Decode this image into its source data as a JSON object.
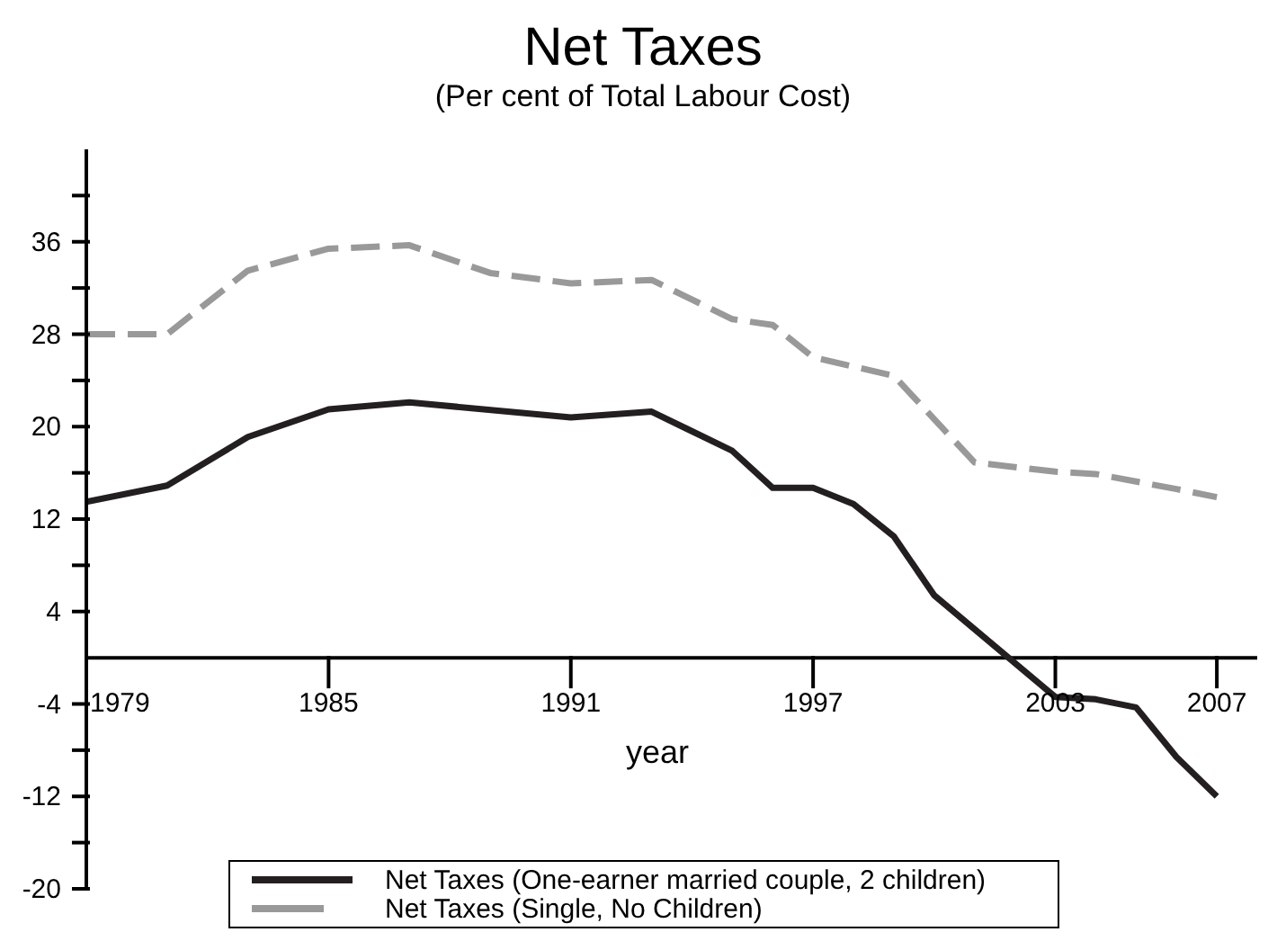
{
  "chart_data": {
    "type": "line",
    "title": "Net Taxes",
    "subtitle": "(Per cent of Total Labour Cost)",
    "xlabel": "year",
    "xlim": [
      1979,
      2008
    ],
    "xticks": [
      1979,
      1985,
      1991,
      1997,
      2003,
      2007
    ],
    "ylim": [
      -20,
      44
    ],
    "yticks": [
      {
        "value": 40,
        "label": null
      },
      36,
      {
        "value": 32,
        "label": null
      },
      28,
      {
        "value": 24,
        "label": null
      },
      20,
      {
        "value": 16,
        "label": null
      },
      12,
      {
        "value": 8,
        "label": null
      },
      4,
      -4,
      {
        "value": -8,
        "label": null
      },
      -12,
      {
        "value": -16,
        "label": null
      },
      -20
    ],
    "legend": "bottom",
    "marker": "none",
    "series": [
      {
        "name": "Net Taxes (One-earner married couple, 2 children)",
        "color": "#231f20",
        "line_style": "solid",
        "x": [
          1979,
          1981,
          1983,
          1985,
          1987,
          1991,
          1993,
          1995,
          1996,
          1997,
          1998,
          1999,
          2000,
          2003,
          2004,
          2005,
          2006,
          2007
        ],
        "values": [
          13.5,
          14.9,
          19.1,
          21.5,
          22.1,
          20.8,
          21.3,
          17.9,
          14.7,
          14.7,
          13.3,
          10.5,
          5.4,
          -3.4,
          -3.6,
          -4.3,
          -8.6,
          -12.0
        ]
      },
      {
        "name": "Net Taxes (Single, No Children)",
        "color": "#999999",
        "line_style": "dashed",
        "x": [
          1979,
          1981,
          1983,
          1985,
          1987,
          1989,
          1991,
          1993,
          1995,
          1996,
          1997,
          1999,
          2001,
          2003,
          2004,
          2006,
          2007
        ],
        "values": [
          28.0,
          28.0,
          33.5,
          35.4,
          35.7,
          33.3,
          32.4,
          32.7,
          29.3,
          28.8,
          26.0,
          24.4,
          16.9,
          16.1,
          15.9,
          14.6,
          13.9
        ]
      }
    ]
  }
}
